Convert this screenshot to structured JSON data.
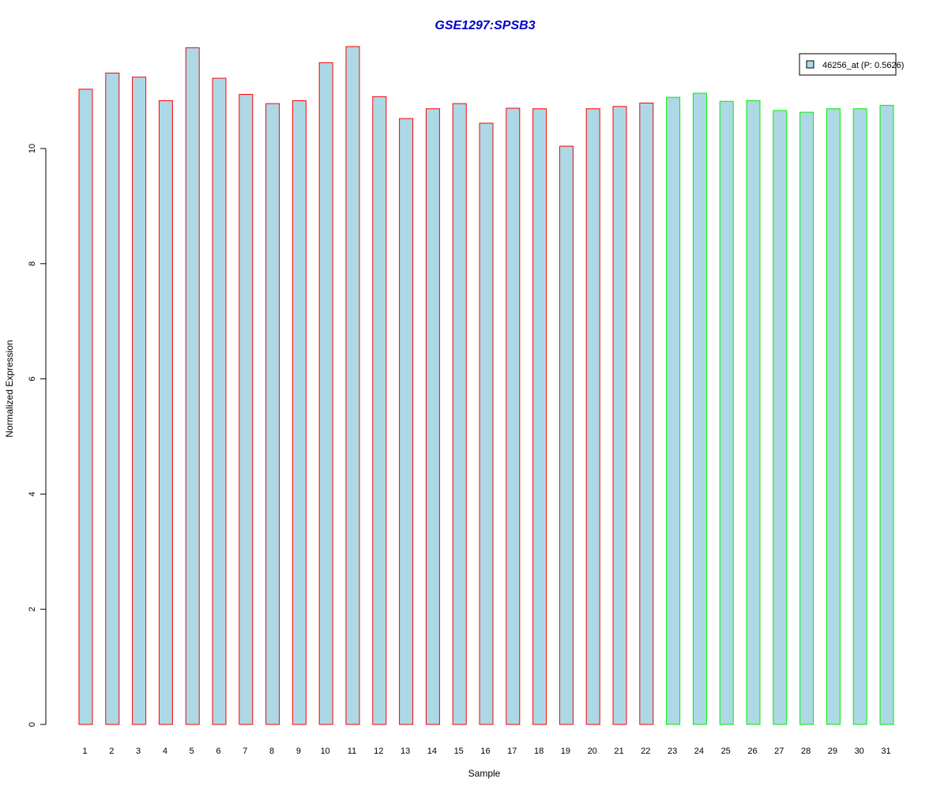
{
  "chart_data": {
    "type": "bar",
    "title": "GSE1297:SPSB3",
    "xlabel": "Sample",
    "ylabel": "Normalized Expression",
    "ylim": [
      0,
      12
    ],
    "yticks": [
      0,
      2,
      4,
      6,
      8,
      10
    ],
    "categories": [
      "1",
      "2",
      "3",
      "4",
      "5",
      "6",
      "7",
      "8",
      "9",
      "10",
      "11",
      "12",
      "13",
      "14",
      "15",
      "16",
      "17",
      "18",
      "19",
      "20",
      "21",
      "22",
      "23",
      "24",
      "25",
      "26",
      "27",
      "28",
      "29",
      "30",
      "31"
    ],
    "series": [
      {
        "name": "46256_at (P: 0.5626)",
        "values": [
          11.03,
          11.31,
          11.24,
          10.83,
          11.75,
          11.22,
          10.94,
          10.78,
          10.83,
          11.49,
          11.77,
          10.9,
          10.52,
          10.69,
          10.78,
          10.44,
          10.7,
          10.69,
          10.04,
          10.69,
          10.73,
          10.79,
          10.89,
          10.96,
          10.82,
          10.83,
          10.66,
          10.63,
          10.69,
          10.69,
          10.75
        ]
      }
    ],
    "group_outline_colors": [
      "#ff0000",
      "#ff0000",
      "#ff0000",
      "#ff0000",
      "#ff0000",
      "#ff0000",
      "#ff0000",
      "#ff0000",
      "#ff0000",
      "#ff0000",
      "#ff0000",
      "#ff0000",
      "#ff0000",
      "#ff0000",
      "#ff0000",
      "#ff0000",
      "#ff0000",
      "#ff0000",
      "#ff0000",
      "#ff0000",
      "#ff0000",
      "#ff0000",
      "#00ee00",
      "#00ee00",
      "#00ee00",
      "#00ee00",
      "#00ee00",
      "#00ee00",
      "#00ee00",
      "#00ee00",
      "#00ee00"
    ],
    "bar_fill_color": "#add8e6",
    "title_color": "#0000cc",
    "legend": {
      "position": "top-right",
      "label": "46256_at (P: 0.5626)"
    },
    "grid": false
  }
}
